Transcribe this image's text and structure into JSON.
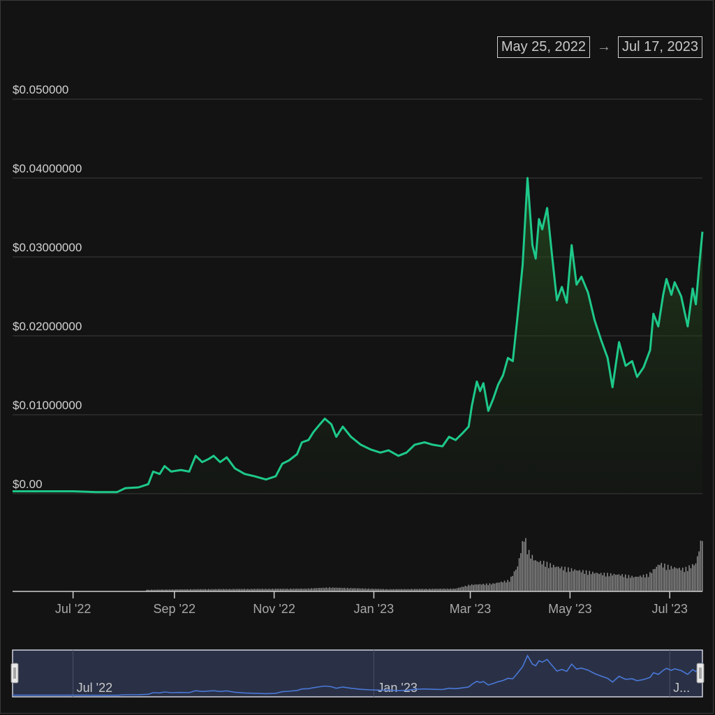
{
  "date_range": {
    "start": "May 25, 2022",
    "arrow": "→",
    "end": "Jul 17, 2023"
  },
  "colors": {
    "price_line": "#1ec98a",
    "volume": "#8a8a8a",
    "navigator_line": "#4a78d8",
    "navigator_bg": "#2a3146"
  },
  "chart_data": {
    "type": "line",
    "title": "",
    "xlabel": "",
    "ylabel": "",
    "y_tick_labels": [
      "$0.00",
      "$0.01000000",
      "$0.02000000",
      "$0.03000000",
      "$0.04000000",
      "$0.050000"
    ],
    "y_ticks": [
      0,
      0.01,
      0.02,
      0.03,
      0.04,
      0.05
    ],
    "ylim": [
      0,
      0.05
    ],
    "x_range": [
      "2022-05-25",
      "2023-07-17"
    ],
    "x_tick_labels": [
      "Jul '22",
      "Sep '22",
      "Nov '22",
      "Jan '23",
      "Mar '23",
      "May '23",
      "Jul '23"
    ],
    "x_ticks": [
      "2022-07-01",
      "2022-09-01",
      "2022-11-01",
      "2023-01-01",
      "2023-03-01",
      "2023-05-01",
      "2023-07-01"
    ],
    "navigator_labels": [
      {
        "date": "2022-07-01",
        "label": "Jul '22"
      },
      {
        "date": "2023-01-01",
        "label": "Jan '23"
      },
      {
        "date": "2023-07-01",
        "label": "J..."
      }
    ],
    "grid": true,
    "series": [
      {
        "values": [
          [
            "2022-05-25",
            0.0003
          ],
          [
            "2022-06-05",
            0.0003
          ],
          [
            "2022-06-20",
            0.0003
          ],
          [
            "2022-07-01",
            0.0003
          ],
          [
            "2022-07-15",
            0.0002
          ],
          [
            "2022-07-28",
            0.0002
          ],
          [
            "2022-08-02",
            0.0007
          ],
          [
            "2022-08-10",
            0.0008
          ],
          [
            "2022-08-16",
            0.0012
          ],
          [
            "2022-08-19",
            0.0028
          ],
          [
            "2022-08-23",
            0.0025
          ],
          [
            "2022-08-26",
            0.0035
          ],
          [
            "2022-08-30",
            0.0028
          ],
          [
            "2022-09-05",
            0.003
          ],
          [
            "2022-09-10",
            0.0028
          ],
          [
            "2022-09-14",
            0.0048
          ],
          [
            "2022-09-18",
            0.004
          ],
          [
            "2022-09-22",
            0.0044
          ],
          [
            "2022-09-25",
            0.0048
          ],
          [
            "2022-09-29",
            0.004
          ],
          [
            "2022-10-03",
            0.0046
          ],
          [
            "2022-10-08",
            0.0032
          ],
          [
            "2022-10-14",
            0.0025
          ],
          [
            "2022-10-20",
            0.0022
          ],
          [
            "2022-10-27",
            0.0018
          ],
          [
            "2022-11-02",
            0.0022
          ],
          [
            "2022-11-06",
            0.0038
          ],
          [
            "2022-11-10",
            0.0042
          ],
          [
            "2022-11-15",
            0.005
          ],
          [
            "2022-11-18",
            0.0065
          ],
          [
            "2022-11-22",
            0.0068
          ],
          [
            "2022-11-25",
            0.0078
          ],
          [
            "2022-11-29",
            0.0088
          ],
          [
            "2022-12-02",
            0.0095
          ],
          [
            "2022-12-06",
            0.0088
          ],
          [
            "2022-12-09",
            0.0072
          ],
          [
            "2022-12-13",
            0.0085
          ],
          [
            "2022-12-18",
            0.0072
          ],
          [
            "2022-12-24",
            0.0062
          ],
          [
            "2022-12-30",
            0.0056
          ],
          [
            "2023-01-05",
            0.0052
          ],
          [
            "2023-01-10",
            0.0055
          ],
          [
            "2023-01-16",
            0.0048
          ],
          [
            "2023-01-21",
            0.0052
          ],
          [
            "2023-01-26",
            0.0062
          ],
          [
            "2023-02-01",
            0.0065
          ],
          [
            "2023-02-06",
            0.0062
          ],
          [
            "2023-02-12",
            0.006
          ],
          [
            "2023-02-16",
            0.0072
          ],
          [
            "2023-02-20",
            0.0068
          ],
          [
            "2023-02-24",
            0.0076
          ],
          [
            "2023-02-28",
            0.0085
          ],
          [
            "2023-03-02",
            0.0112
          ],
          [
            "2023-03-05",
            0.0142
          ],
          [
            "2023-03-07",
            0.013
          ],
          [
            "2023-03-09",
            0.014
          ],
          [
            "2023-03-12",
            0.0105
          ],
          [
            "2023-03-15",
            0.012
          ],
          [
            "2023-03-18",
            0.0138
          ],
          [
            "2023-03-21",
            0.015
          ],
          [
            "2023-03-24",
            0.0172
          ],
          [
            "2023-03-27",
            0.0168
          ],
          [
            "2023-03-30",
            0.0226
          ],
          [
            "2023-04-02",
            0.029
          ],
          [
            "2023-04-05",
            0.04
          ],
          [
            "2023-04-08",
            0.0315
          ],
          [
            "2023-04-10",
            0.0298
          ],
          [
            "2023-04-12",
            0.0348
          ],
          [
            "2023-04-14",
            0.0335
          ],
          [
            "2023-04-17",
            0.0362
          ],
          [
            "2023-04-20",
            0.0302
          ],
          [
            "2023-04-23",
            0.0245
          ],
          [
            "2023-04-26",
            0.0262
          ],
          [
            "2023-04-29",
            0.0242
          ],
          [
            "2023-05-02",
            0.0315
          ],
          [
            "2023-05-05",
            0.0265
          ],
          [
            "2023-05-08",
            0.0275
          ],
          [
            "2023-05-12",
            0.0255
          ],
          [
            "2023-05-16",
            0.022
          ],
          [
            "2023-05-20",
            0.0195
          ],
          [
            "2023-05-24",
            0.0172
          ],
          [
            "2023-05-27",
            0.0135
          ],
          [
            "2023-05-31",
            0.0192
          ],
          [
            "2023-06-04",
            0.0162
          ],
          [
            "2023-06-08",
            0.0168
          ],
          [
            "2023-06-11",
            0.0148
          ],
          [
            "2023-06-15",
            0.016
          ],
          [
            "2023-06-19",
            0.0182
          ],
          [
            "2023-06-21",
            0.0228
          ],
          [
            "2023-06-24",
            0.0212
          ],
          [
            "2023-06-27",
            0.0252
          ],
          [
            "2023-06-29",
            0.0272
          ],
          [
            "2023-07-02",
            0.0252
          ],
          [
            "2023-07-04",
            0.0268
          ],
          [
            "2023-07-08",
            0.025
          ],
          [
            "2023-07-12",
            0.0212
          ],
          [
            "2023-07-15",
            0.026
          ],
          [
            "2023-07-17",
            0.024
          ],
          [
            "2023-07-19",
            0.0288
          ],
          [
            "2023-07-21",
            0.0332
          ]
        ]
      }
    ],
    "volume": {
      "values": [
        [
          "2022-08-15",
          0.03
        ],
        [
          "2022-09-15",
          0.04
        ],
        [
          "2022-11-20",
          0.05
        ],
        [
          "2022-12-05",
          0.07
        ],
        [
          "2023-01-10",
          0.04
        ],
        [
          "2023-02-20",
          0.05
        ],
        [
          "2023-03-01",
          0.12
        ],
        [
          "2023-03-15",
          0.14
        ],
        [
          "2023-03-25",
          0.2
        ],
        [
          "2023-03-30",
          0.45
        ],
        [
          "2023-04-03",
          1.0
        ],
        [
          "2023-04-06",
          0.7
        ],
        [
          "2023-04-10",
          0.55
        ],
        [
          "2023-04-15",
          0.52
        ],
        [
          "2023-04-22",
          0.45
        ],
        [
          "2023-05-01",
          0.4
        ],
        [
          "2023-05-10",
          0.36
        ],
        [
          "2023-05-20",
          0.32
        ],
        [
          "2023-06-01",
          0.3
        ],
        [
          "2023-06-10",
          0.26
        ],
        [
          "2023-06-18",
          0.3
        ],
        [
          "2023-06-25",
          0.5
        ],
        [
          "2023-07-01",
          0.44
        ],
        [
          "2023-07-10",
          0.4
        ],
        [
          "2023-07-17",
          0.5
        ],
        [
          "2023-07-21",
          1.0
        ]
      ]
    }
  }
}
